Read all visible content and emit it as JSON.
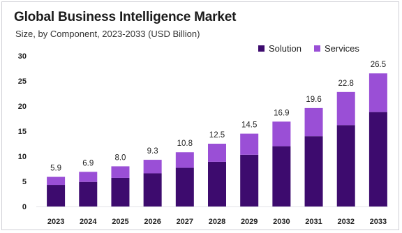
{
  "chart_data": {
    "type": "bar",
    "stacked": true,
    "title": "Global Business Intelligence Market",
    "subtitle": "Size, by Component, 2023-2033 (USD Billion)",
    "categories": [
      "2023",
      "2024",
      "2025",
      "2026",
      "2027",
      "2028",
      "2029",
      "2030",
      "2031",
      "2032",
      "2033"
    ],
    "totals": [
      5.9,
      6.9,
      8.0,
      9.3,
      10.8,
      12.5,
      14.5,
      16.9,
      19.6,
      22.8,
      26.5
    ],
    "total_labels": [
      "5.9",
      "6.9",
      "8.0",
      "9.3",
      "10.8",
      "12.5",
      "14.5",
      "16.9",
      "19.6",
      "22.8",
      "26.5"
    ],
    "series": [
      {
        "name": "Solution",
        "color": "#3d0b6e",
        "values": [
          4.3,
          4.9,
          5.7,
          6.6,
          7.7,
          8.9,
          10.3,
          12.0,
          14.0,
          16.2,
          18.8
        ]
      },
      {
        "name": "Services",
        "color": "#9a4fd6",
        "values": [
          1.6,
          2.0,
          2.3,
          2.7,
          3.1,
          3.6,
          4.2,
          4.9,
          5.6,
          6.6,
          7.7
        ]
      }
    ],
    "ylim": [
      0,
      30
    ],
    "yticks": [
      "0",
      "5",
      "10",
      "15",
      "20",
      "25",
      "30"
    ],
    "legend_position": "top-right",
    "grid": false
  }
}
